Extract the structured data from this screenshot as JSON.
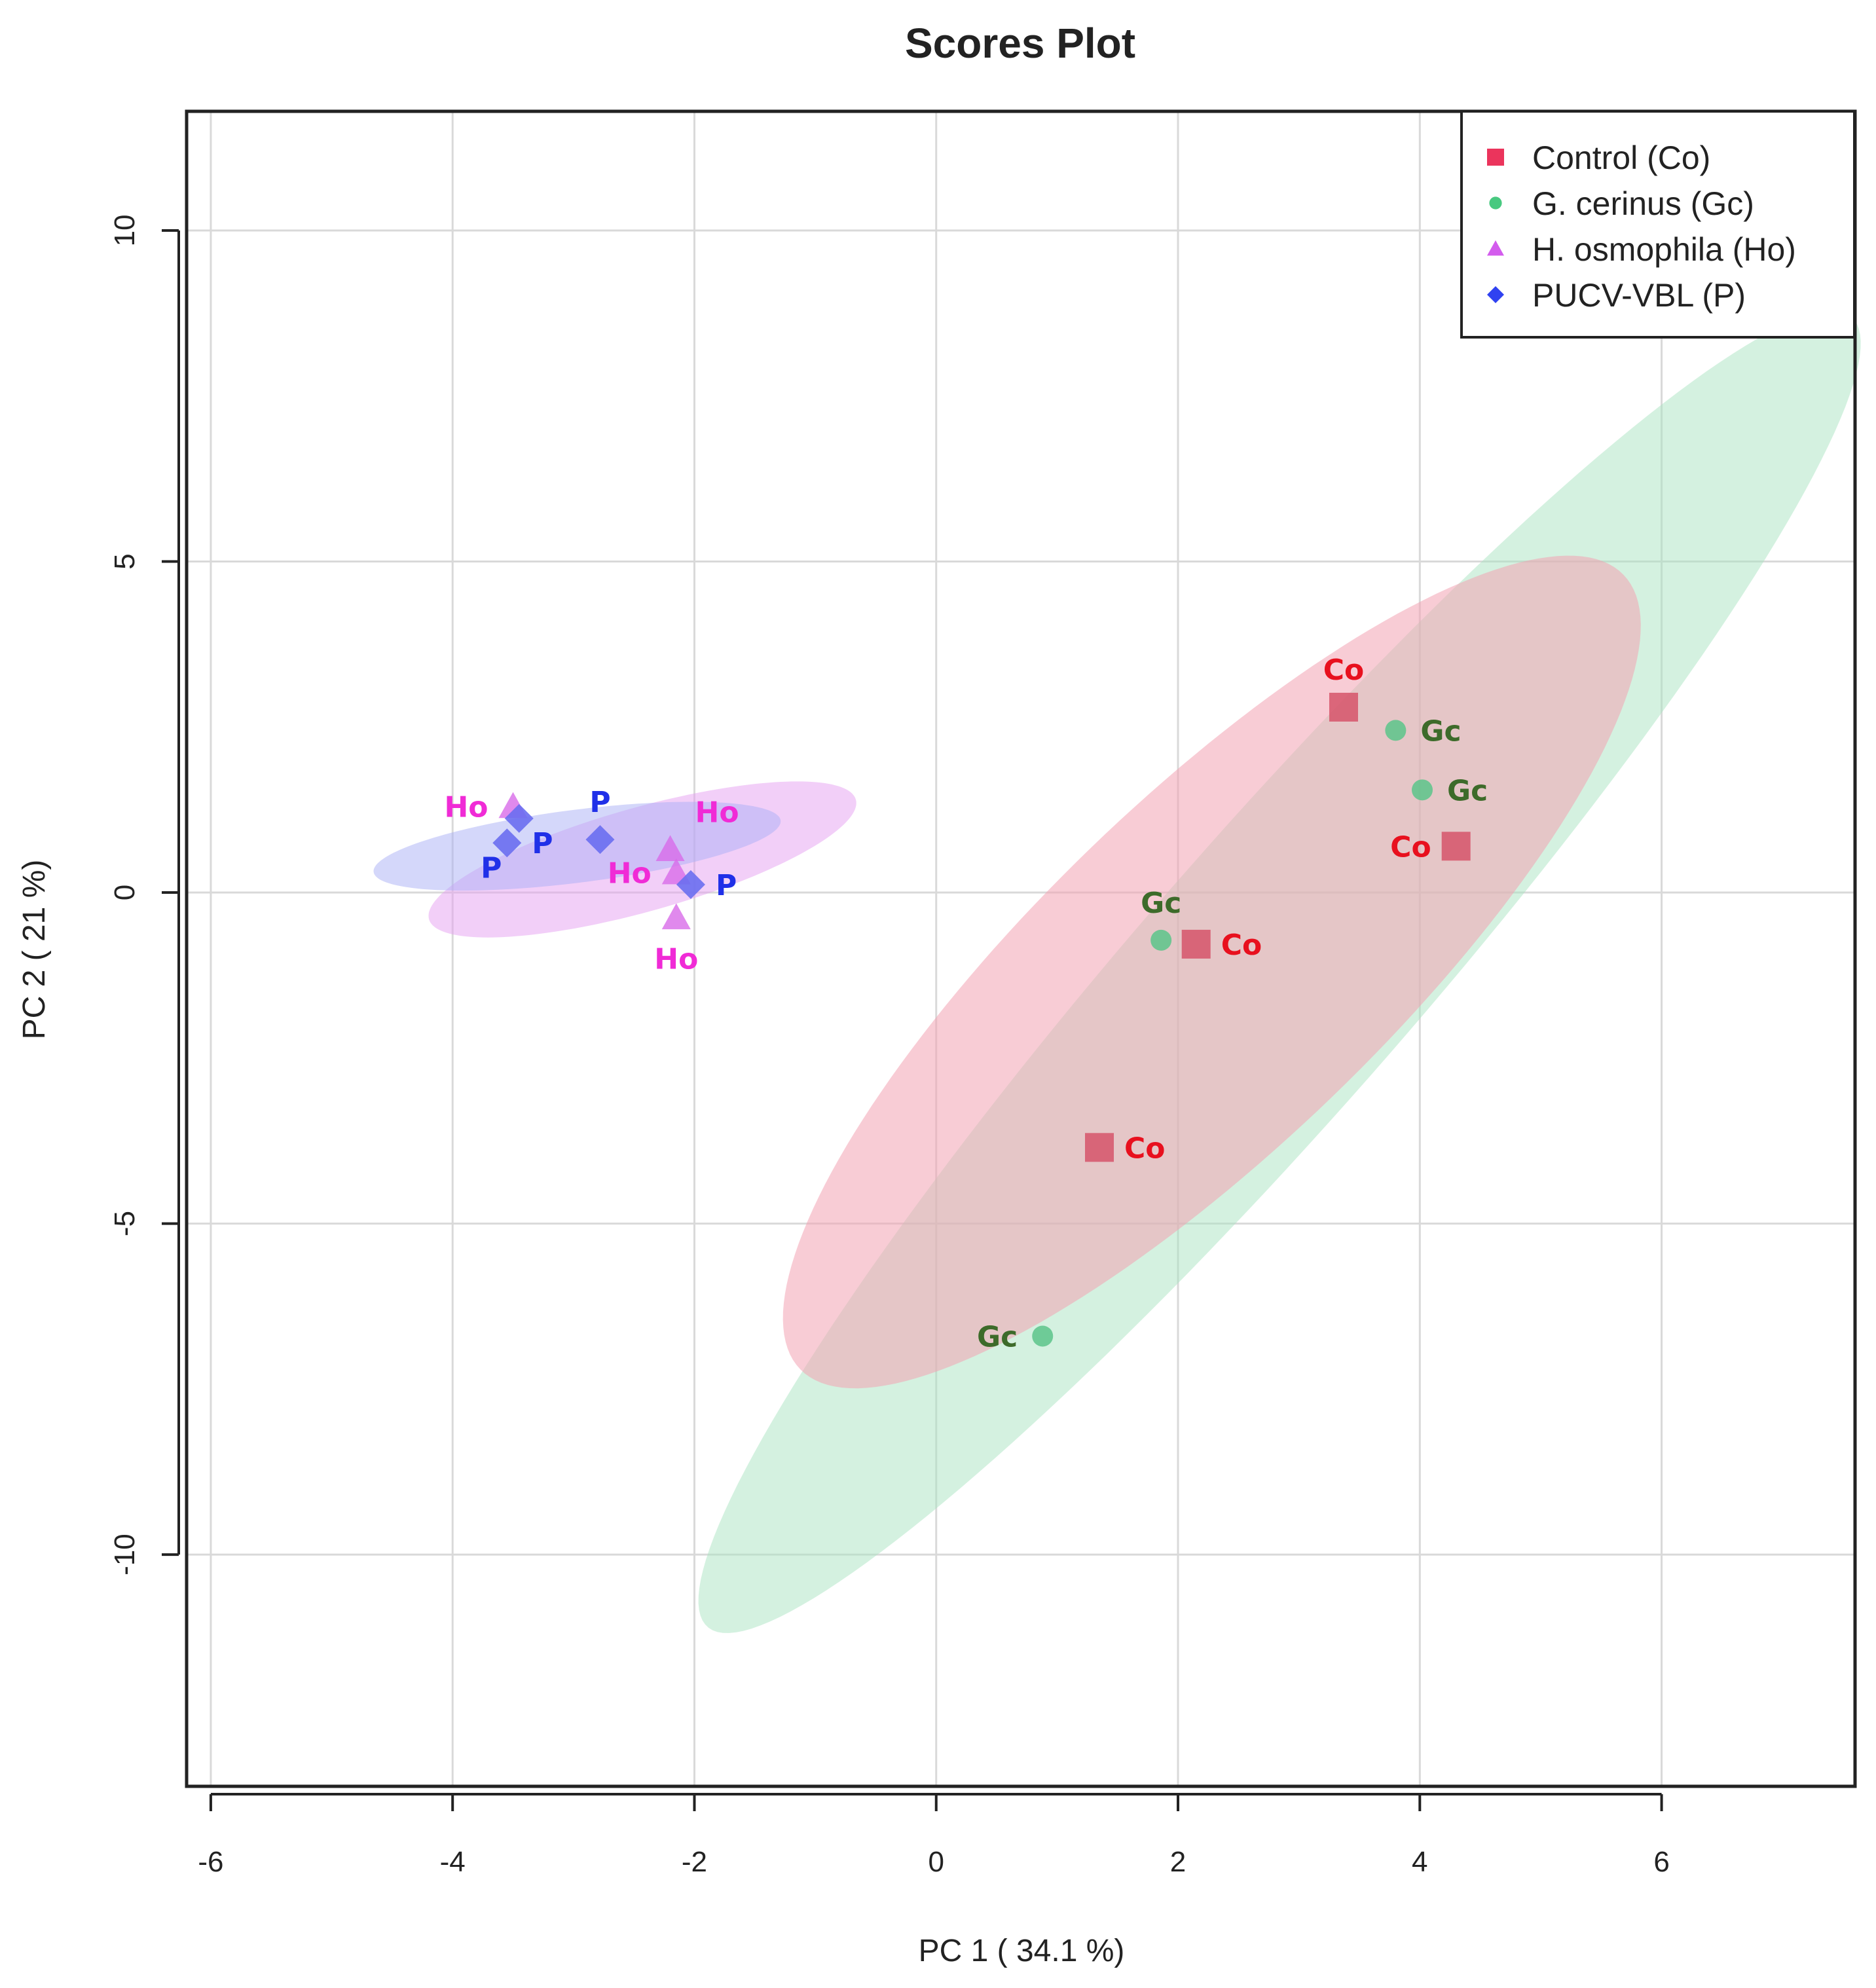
{
  "chart_data": {
    "type": "scatter",
    "title": "Scores Plot",
    "xlabel": "PC 1 ( 34.1 %)",
    "ylabel": "PC 2 ( 21 %)",
    "xlim": [
      -6.2,
      7.6
    ],
    "ylim": [
      -13.5,
      11.8
    ],
    "xticks": [
      -6,
      -4,
      -2,
      0,
      2,
      4,
      6
    ],
    "yticks": [
      -10,
      -5,
      0,
      5,
      10
    ],
    "grid": true,
    "legend_position": "top-right",
    "series": [
      {
        "name": "Control (Co)",
        "marker": "square",
        "color": "#d6546a",
        "label_color": "#e8101e",
        "ellipse_color": "#f2a3b3",
        "point_label": "Co",
        "points": [
          [
            3.37,
            2.8
          ],
          [
            4.3,
            0.7
          ],
          [
            2.15,
            -0.78
          ],
          [
            1.35,
            -3.85
          ]
        ],
        "label_offsets": [
          [
            "center",
            "above"
          ],
          [
            "left",
            "center"
          ],
          [
            "right",
            "center"
          ],
          [
            "right",
            "center"
          ]
        ],
        "ellipse": {
          "cx": 2.28,
          "cy": -1.2,
          "rx": 7.0,
          "ry": 1.77,
          "angle_deg": 63
        }
      },
      {
        "name": "G. cerinus (Gc)",
        "marker": "circle",
        "color": "#5cc48a",
        "label_color": "#3d6b2a",
        "ellipse_color": "#a9e3c2",
        "point_label": "Gc",
        "points": [
          [
            3.8,
            2.45
          ],
          [
            4.02,
            1.55
          ],
          [
            1.86,
            -0.72
          ],
          [
            0.88,
            -6.7
          ]
        ],
        "label_offsets": [
          [
            "right",
            "center"
          ],
          [
            "right",
            "center"
          ],
          [
            "center",
            "above"
          ],
          [
            "left",
            "center"
          ]
        ],
        "ellipse": {
          "cx": 2.84,
          "cy": -1.2,
          "rx": 11.0,
          "ry": 1.35,
          "angle_deg": 65
        }
      },
      {
        "name": "H. osmophila (Ho)",
        "marker": "triangle",
        "color": "#d86ce8",
        "label_color": "#f02bd6",
        "ellipse_color": "#e6a0f2",
        "point_label": "Ho",
        "points": [
          [
            -3.5,
            1.3
          ],
          [
            -2.2,
            0.65
          ],
          [
            -2.15,
            0.3
          ],
          [
            -2.15,
            -0.38
          ]
        ],
        "label_offsets": [
          [
            "left",
            "center"
          ],
          [
            "right",
            "above"
          ],
          [
            "left",
            "center"
          ],
          [
            "center",
            "below"
          ]
        ],
        "ellipse": {
          "cx": -2.43,
          "cy": 0.5,
          "rx": 2.0,
          "ry": 0.72,
          "angle_deg": 30
        }
      },
      {
        "name": "PUCV-VBL (P)",
        "marker": "diamond",
        "color": "#6a6ef0",
        "label_color": "#2030e8",
        "ellipse_color": "#a9b0f5",
        "point_label": "P",
        "points": [
          [
            -3.45,
            1.12
          ],
          [
            -3.55,
            0.75
          ],
          [
            -2.78,
            0.8
          ],
          [
            -2.03,
            0.12
          ]
        ],
        "label_offsets": [
          [
            "none",
            "none"
          ],
          [
            "right",
            "center"
          ],
          [
            "center",
            "above"
          ],
          [
            "right",
            "center"
          ]
        ],
        "extra_labels": [
          [
            -3.68,
            0.38
          ]
        ],
        "ellipse": {
          "cx": -2.97,
          "cy": 0.7,
          "rx": 1.73,
          "ry": 0.54,
          "angle_deg": 14
        }
      }
    ]
  }
}
